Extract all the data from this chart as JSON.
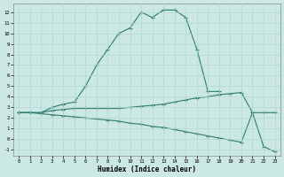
{
  "xlabel": "Humidex (Indice chaleur)",
  "background_color": "#cce8e4",
  "line_color": "#2d7a6e",
  "grid_color": "#b0d8d0",
  "xlim": [
    -0.5,
    23.5
  ],
  "ylim": [
    -1.6,
    12.8
  ],
  "xticks": [
    0,
    1,
    2,
    3,
    4,
    5,
    6,
    7,
    8,
    9,
    10,
    11,
    12,
    13,
    14,
    15,
    16,
    17,
    18,
    19,
    20,
    21,
    22,
    23
  ],
  "yticks": [
    -1,
    0,
    1,
    2,
    3,
    4,
    5,
    6,
    7,
    8,
    9,
    10,
    11,
    12
  ],
  "line_peak_x": [
    0,
    1,
    2,
    3,
    4,
    5,
    6,
    7,
    8,
    9,
    10,
    11,
    12,
    13,
    14,
    15,
    16,
    17,
    18
  ],
  "line_peak_y": [
    2.5,
    2.5,
    2.5,
    3.0,
    3.3,
    3.5,
    5.0,
    7.0,
    8.5,
    10.0,
    10.5,
    12.0,
    11.5,
    12.2,
    12.2,
    11.5,
    8.5,
    4.5,
    4.5
  ],
  "line_flat_x": [
    0,
    1,
    2,
    3,
    4,
    5,
    6,
    7,
    8,
    9,
    10,
    11,
    12,
    13,
    14,
    15,
    16,
    17,
    18,
    19,
    20,
    21,
    22,
    23
  ],
  "line_flat_y": [
    2.5,
    2.5,
    2.5,
    2.7,
    2.8,
    2.9,
    2.9,
    2.9,
    2.9,
    2.9,
    3.0,
    3.1,
    3.2,
    3.3,
    3.5,
    3.7,
    3.9,
    4.0,
    4.2,
    4.3,
    4.4,
    2.5,
    2.5,
    2.5
  ],
  "line_down_x": [
    0,
    1,
    2,
    3,
    4,
    5,
    6,
    7,
    8,
    9,
    10,
    11,
    12,
    13,
    14,
    15,
    16,
    17,
    18,
    19,
    20,
    21,
    22,
    23
  ],
  "line_down_y": [
    2.5,
    2.5,
    2.4,
    2.3,
    2.2,
    2.1,
    2.0,
    1.9,
    1.8,
    1.7,
    1.5,
    1.4,
    1.2,
    1.1,
    0.9,
    0.7,
    0.5,
    0.3,
    0.1,
    -0.1,
    -0.3,
    2.5,
    -0.7,
    -1.2
  ]
}
